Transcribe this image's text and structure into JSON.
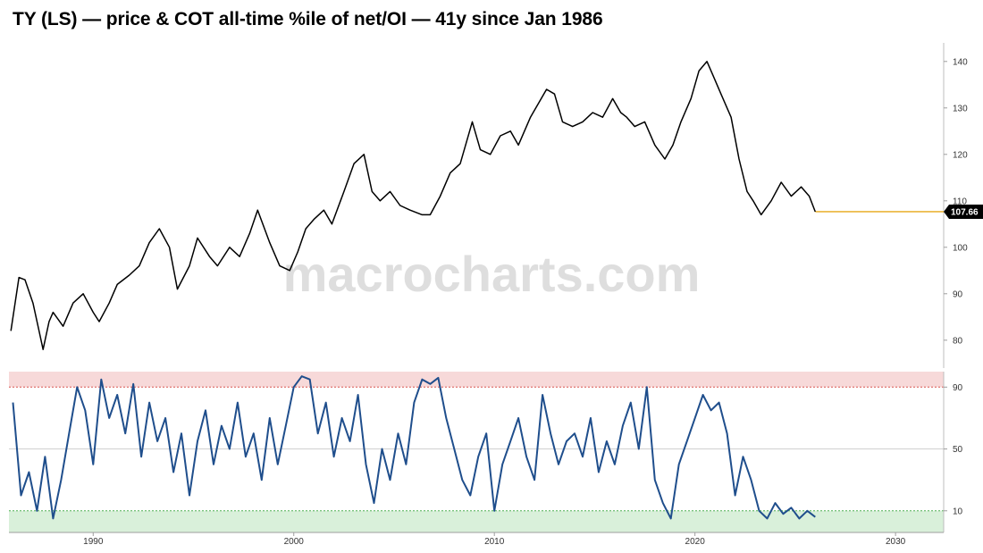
{
  "header": {
    "title": "TY (LS) — price & COT all-time %ile of net/OI — 41y since Jan 1986"
  },
  "watermark": "macrocharts.com",
  "colors": {
    "price_line": "#000000",
    "percentile_line": "#1f4e8c",
    "last_price_line": "#e6a817",
    "upper_band": "#f7d9d9",
    "lower_band": "#d9f0da",
    "upper_threshold": "#d9534f",
    "lower_threshold": "#4caf50"
  },
  "chart_data": [
    {
      "type": "line",
      "title": "",
      "series": [
        {
          "x": [
            1985.9,
            1986.3,
            1986.6,
            1987.0,
            1987.3,
            1987.5,
            1987.8,
            1988.0,
            1988.5,
            1989.0,
            1989.5,
            1990.0,
            1990.3,
            1990.8,
            1991.2,
            1991.8,
            1992.3,
            1992.8,
            1993.3,
            1993.8,
            1994.2,
            1994.8,
            1995.2,
            1995.8,
            1996.2,
            1996.8,
            1997.3,
            1997.8,
            1998.2,
            1998.8,
            1999.3,
            1999.8,
            2000.2,
            2000.6,
            2001.0,
            2001.5,
            2001.9,
            2002.5,
            2003.0,
            2003.5,
            2003.9,
            2004.3,
            2004.8,
            2005.3,
            2005.8,
            2006.4,
            2006.8,
            2007.3,
            2007.8,
            2008.3,
            2008.9,
            2009.3,
            2009.8,
            2010.3,
            2010.8,
            2011.2,
            2011.8,
            2012.2,
            2012.6,
            2013.0,
            2013.4,
            2013.9,
            2014.4,
            2014.9,
            2015.4,
            2015.9,
            2016.3,
            2016.6,
            2017.0,
            2017.5,
            2018.0,
            2018.5,
            2018.9,
            2019.3,
            2019.8,
            2020.2,
            2020.6,
            2020.9,
            2021.3,
            2021.8,
            2022.2,
            2022.6,
            2022.9,
            2023.3,
            2023.8,
            2024.3,
            2024.8,
            2025.3,
            2025.7,
            2026.0
          ],
          "values": [
            82,
            93.5,
            93,
            88,
            82,
            78,
            84,
            86,
            83,
            88,
            90,
            86,
            84,
            88,
            92,
            94,
            96,
            101,
            104,
            100,
            91,
            96,
            102,
            98,
            96,
            100,
            98,
            103,
            108,
            101,
            96,
            95,
            99,
            104,
            106,
            108,
            105,
            112,
            118,
            120,
            112,
            110,
            112,
            109,
            108,
            107,
            107,
            111,
            116,
            118,
            127,
            121,
            120,
            124,
            125,
            122,
            128,
            131,
            134,
            133,
            127,
            126,
            127,
            129,
            128,
            132,
            129,
            128,
            126,
            127,
            122,
            119,
            122,
            127,
            132,
            138,
            140,
            137,
            133,
            128,
            119,
            112,
            110,
            107,
            110,
            114,
            111,
            113,
            111,
            107.66
          ]
        }
      ],
      "ylim": [
        74,
        144
      ],
      "yticks": [
        "80",
        "90",
        "100",
        "110",
        "120",
        "130",
        "140"
      ],
      "last_value": 107.66,
      "last_value_label": "107.66"
    },
    {
      "type": "line",
      "title": "",
      "series": [
        {
          "x": [
            1986.0,
            1986.4,
            1986.8,
            1987.2,
            1987.6,
            1988.0,
            1988.4,
            1988.8,
            1989.2,
            1989.6,
            1990.0,
            1990.4,
            1990.8,
            1991.2,
            1991.6,
            1992.0,
            1992.4,
            1992.8,
            1993.2,
            1993.6,
            1994.0,
            1994.4,
            1994.8,
            1995.2,
            1995.6,
            1996.0,
            1996.4,
            1996.8,
            1997.2,
            1997.6,
            1998.0,
            1998.4,
            1998.8,
            1999.2,
            1999.6,
            2000.0,
            2000.4,
            2000.8,
            2001.2,
            2001.6,
            2002.0,
            2002.4,
            2002.8,
            2003.2,
            2003.6,
            2004.0,
            2004.4,
            2004.8,
            2005.2,
            2005.6,
            2006.0,
            2006.4,
            2006.8,
            2007.2,
            2007.6,
            2008.0,
            2008.4,
            2008.8,
            2009.2,
            2009.6,
            2010.0,
            2010.4,
            2010.8,
            2011.2,
            2011.6,
            2012.0,
            2012.4,
            2012.8,
            2013.2,
            2013.6,
            2014.0,
            2014.4,
            2014.8,
            2015.2,
            2015.6,
            2016.0,
            2016.4,
            2016.8,
            2017.2,
            2017.6,
            2018.0,
            2018.4,
            2018.8,
            2019.2,
            2019.6,
            2020.0,
            2020.4,
            2020.8,
            2021.2,
            2021.6,
            2022.0,
            2022.4,
            2022.8,
            2023.2,
            2023.6,
            2024.0,
            2024.4,
            2024.8,
            2025.2,
            2025.6,
            2026.0
          ],
          "values": [
            80,
            20,
            35,
            10,
            45,
            5,
            30,
            60,
            90,
            75,
            40,
            95,
            70,
            85,
            60,
            92,
            45,
            80,
            55,
            70,
            35,
            60,
            20,
            55,
            75,
            40,
            65,
            50,
            80,
            45,
            60,
            30,
            70,
            40,
            65,
            90,
            97,
            95,
            60,
            80,
            45,
            70,
            55,
            85,
            40,
            15,
            50,
            30,
            60,
            40,
            80,
            95,
            92,
            96,
            70,
            50,
            30,
            20,
            45,
            60,
            10,
            40,
            55,
            70,
            45,
            30,
            85,
            60,
            40,
            55,
            60,
            45,
            70,
            35,
            55,
            40,
            65,
            80,
            50,
            90,
            30,
            15,
            5,
            40,
            55,
            70,
            85,
            75,
            80,
            60,
            20,
            45,
            30,
            10,
            5,
            15,
            8,
            12,
            5,
            10,
            6
          ]
        }
      ],
      "ylim": [
        -4,
        100
      ],
      "yticks": [
        "10",
        "50",
        "90"
      ],
      "upper_threshold": 90,
      "lower_threshold": 10,
      "xlim": [
        1985.8,
        2032.4
      ],
      "xticks": [
        "1990",
        "2000",
        "2010",
        "2020",
        "2030"
      ]
    }
  ]
}
